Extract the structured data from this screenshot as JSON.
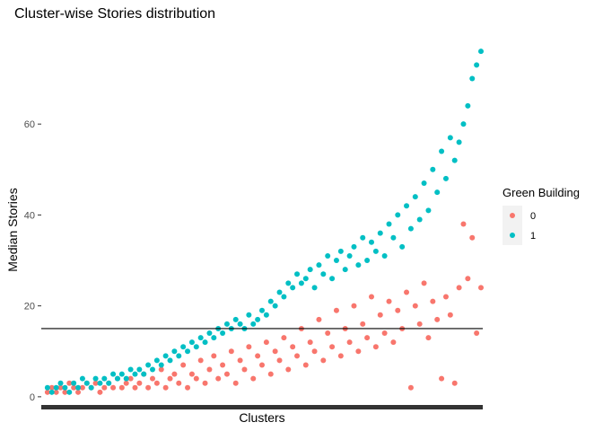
{
  "chart_data": {
    "type": "scatter",
    "title": "Cluster-wise Stories distribution",
    "xlabel": "Clusters",
    "ylabel": "Median Stories",
    "ylim": [
      -2,
      79
    ],
    "yticks": [
      0,
      20,
      40,
      60
    ],
    "xlim": [
      0,
      1
    ],
    "grid": false,
    "reference_line": {
      "y": 15
    },
    "legend": {
      "title": "Green Building",
      "placement": "right",
      "entries": [
        {
          "label": "0",
          "color": "#F8766D"
        },
        {
          "label": "1",
          "color": "#00BFC4"
        }
      ]
    },
    "series": [
      {
        "name": "0",
        "color": "#F8766D",
        "points": [
          [
            0.01,
            1
          ],
          [
            0.02,
            2
          ],
          [
            0.03,
            1
          ],
          [
            0.04,
            2
          ],
          [
            0.05,
            1
          ],
          [
            0.06,
            3
          ],
          [
            0.07,
            2
          ],
          [
            0.08,
            1
          ],
          [
            0.09,
            2
          ],
          [
            0.1,
            3
          ],
          [
            0.11,
            2
          ],
          [
            0.12,
            3
          ],
          [
            0.13,
            1
          ],
          [
            0.14,
            2
          ],
          [
            0.15,
            3
          ],
          [
            0.16,
            2
          ],
          [
            0.17,
            4
          ],
          [
            0.18,
            2
          ],
          [
            0.19,
            3
          ],
          [
            0.2,
            4
          ],
          [
            0.21,
            2
          ],
          [
            0.22,
            3
          ],
          [
            0.23,
            5
          ],
          [
            0.24,
            2
          ],
          [
            0.25,
            4
          ],
          [
            0.26,
            3
          ],
          [
            0.27,
            6
          ],
          [
            0.28,
            2
          ],
          [
            0.29,
            4
          ],
          [
            0.3,
            5
          ],
          [
            0.31,
            3
          ],
          [
            0.32,
            7
          ],
          [
            0.33,
            2
          ],
          [
            0.34,
            5
          ],
          [
            0.35,
            4
          ],
          [
            0.36,
            8
          ],
          [
            0.37,
            3
          ],
          [
            0.38,
            6
          ],
          [
            0.39,
            9
          ],
          [
            0.4,
            4
          ],
          [
            0.41,
            7
          ],
          [
            0.42,
            5
          ],
          [
            0.43,
            10
          ],
          [
            0.44,
            3
          ],
          [
            0.45,
            8
          ],
          [
            0.46,
            6
          ],
          [
            0.47,
            11
          ],
          [
            0.48,
            4
          ],
          [
            0.49,
            9
          ],
          [
            0.5,
            7
          ],
          [
            0.51,
            12
          ],
          [
            0.52,
            5
          ],
          [
            0.53,
            10
          ],
          [
            0.54,
            8
          ],
          [
            0.55,
            13
          ],
          [
            0.56,
            6
          ],
          [
            0.57,
            11
          ],
          [
            0.58,
            9
          ],
          [
            0.59,
            15
          ],
          [
            0.6,
            7
          ],
          [
            0.61,
            12
          ],
          [
            0.62,
            10
          ],
          [
            0.63,
            17
          ],
          [
            0.64,
            8
          ],
          [
            0.65,
            14
          ],
          [
            0.66,
            11
          ],
          [
            0.67,
            19
          ],
          [
            0.68,
            9
          ],
          [
            0.69,
            15
          ],
          [
            0.7,
            12
          ],
          [
            0.71,
            20
          ],
          [
            0.72,
            10
          ],
          [
            0.73,
            16
          ],
          [
            0.74,
            13
          ],
          [
            0.75,
            22
          ],
          [
            0.76,
            11
          ],
          [
            0.77,
            18
          ],
          [
            0.78,
            14
          ],
          [
            0.79,
            21
          ],
          [
            0.8,
            12
          ],
          [
            0.81,
            19
          ],
          [
            0.82,
            15
          ],
          [
            0.83,
            23
          ],
          [
            0.84,
            2
          ],
          [
            0.85,
            20
          ],
          [
            0.86,
            16
          ],
          [
            0.87,
            25
          ],
          [
            0.88,
            13
          ],
          [
            0.89,
            21
          ],
          [
            0.9,
            17
          ],
          [
            0.91,
            4
          ],
          [
            0.92,
            22
          ],
          [
            0.93,
            18
          ],
          [
            0.94,
            3
          ],
          [
            0.95,
            24
          ],
          [
            0.96,
            38
          ],
          [
            0.97,
            26
          ],
          [
            0.98,
            35
          ],
          [
            0.99,
            14
          ],
          [
            1.0,
            24
          ]
        ]
      },
      {
        "name": "1",
        "color": "#00BFC4",
        "points": [
          [
            0.01,
            2
          ],
          [
            0.02,
            1
          ],
          [
            0.03,
            2
          ],
          [
            0.04,
            3
          ],
          [
            0.05,
            2
          ],
          [
            0.06,
            1
          ],
          [
            0.07,
            3
          ],
          [
            0.08,
            2
          ],
          [
            0.09,
            4
          ],
          [
            0.1,
            3
          ],
          [
            0.11,
            2
          ],
          [
            0.12,
            4
          ],
          [
            0.13,
            3
          ],
          [
            0.14,
            4
          ],
          [
            0.15,
            3
          ],
          [
            0.16,
            5
          ],
          [
            0.17,
            4
          ],
          [
            0.18,
            5
          ],
          [
            0.19,
            4
          ],
          [
            0.2,
            6
          ],
          [
            0.21,
            5
          ],
          [
            0.22,
            6
          ],
          [
            0.23,
            5
          ],
          [
            0.24,
            7
          ],
          [
            0.25,
            6
          ],
          [
            0.26,
            8
          ],
          [
            0.27,
            7
          ],
          [
            0.28,
            9
          ],
          [
            0.29,
            8
          ],
          [
            0.3,
            10
          ],
          [
            0.31,
            9
          ],
          [
            0.32,
            11
          ],
          [
            0.33,
            10
          ],
          [
            0.34,
            12
          ],
          [
            0.35,
            11
          ],
          [
            0.36,
            13
          ],
          [
            0.37,
            12
          ],
          [
            0.38,
            14
          ],
          [
            0.39,
            13
          ],
          [
            0.4,
            15
          ],
          [
            0.41,
            14
          ],
          [
            0.42,
            16
          ],
          [
            0.43,
            15
          ],
          [
            0.44,
            17
          ],
          [
            0.45,
            16
          ],
          [
            0.46,
            15
          ],
          [
            0.47,
            18
          ],
          [
            0.48,
            16
          ],
          [
            0.49,
            17
          ],
          [
            0.5,
            19
          ],
          [
            0.51,
            18
          ],
          [
            0.52,
            21
          ],
          [
            0.53,
            20
          ],
          [
            0.54,
            23
          ],
          [
            0.55,
            22
          ],
          [
            0.56,
            25
          ],
          [
            0.57,
            24
          ],
          [
            0.58,
            27
          ],
          [
            0.59,
            25
          ],
          [
            0.6,
            26
          ],
          [
            0.61,
            28
          ],
          [
            0.62,
            24
          ],
          [
            0.63,
            29
          ],
          [
            0.64,
            27
          ],
          [
            0.65,
            31
          ],
          [
            0.66,
            26
          ],
          [
            0.67,
            30
          ],
          [
            0.68,
            32
          ],
          [
            0.69,
            28
          ],
          [
            0.7,
            31
          ],
          [
            0.71,
            33
          ],
          [
            0.72,
            29
          ],
          [
            0.73,
            35
          ],
          [
            0.74,
            30
          ],
          [
            0.75,
            34
          ],
          [
            0.76,
            32
          ],
          [
            0.77,
            36
          ],
          [
            0.78,
            31
          ],
          [
            0.79,
            38
          ],
          [
            0.8,
            35
          ],
          [
            0.81,
            40
          ],
          [
            0.82,
            33
          ],
          [
            0.83,
            42
          ],
          [
            0.84,
            37
          ],
          [
            0.85,
            44
          ],
          [
            0.86,
            39
          ],
          [
            0.87,
            47
          ],
          [
            0.88,
            41
          ],
          [
            0.89,
            50
          ],
          [
            0.9,
            45
          ],
          [
            0.91,
            54
          ],
          [
            0.92,
            48
          ],
          [
            0.93,
            57
          ],
          [
            0.94,
            52
          ],
          [
            0.95,
            56
          ],
          [
            0.96,
            60
          ],
          [
            0.97,
            64
          ],
          [
            0.98,
            70
          ],
          [
            0.99,
            73
          ],
          [
            1.0,
            76
          ]
        ]
      }
    ]
  }
}
